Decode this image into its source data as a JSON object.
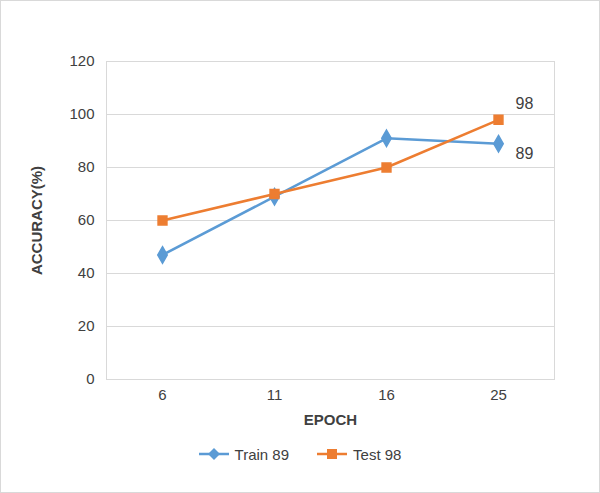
{
  "chart_data": {
    "type": "line",
    "x_label": "EPOCH",
    "y_label": "ACCURACY(%)",
    "categories": [
      "6",
      "11",
      "16",
      "25"
    ],
    "series": [
      {
        "name": "Train 89",
        "color": "#5b9bd5",
        "marker": "diamond",
        "values": [
          47,
          69,
          91,
          89
        ]
      },
      {
        "name": "Test 98",
        "color": "#ed7d31",
        "marker": "square",
        "values": [
          60,
          70,
          80,
          98
        ]
      }
    ],
    "ylim": [
      0,
      120
    ],
    "yticks": [
      0,
      20,
      40,
      60,
      80,
      100,
      120
    ],
    "grid": true,
    "legend": "bottom",
    "annotations": [
      {
        "text": "98",
        "x": "25",
        "y": 98
      },
      {
        "text": "89",
        "x": "25",
        "y": 89
      }
    ]
  }
}
